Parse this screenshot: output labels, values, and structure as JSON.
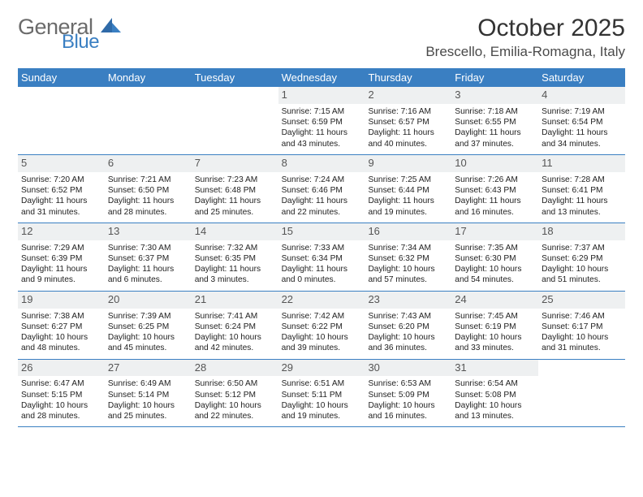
{
  "logo": {
    "top": "General",
    "bottom": "Blue"
  },
  "title": "October 2025",
  "location": "Brescello, Emilia-Romagna, Italy",
  "colors": {
    "header_bg": "#3a7fc2",
    "header_text": "#ffffff",
    "daynum_bg": "#eef0f1",
    "row_border": "#3a7fc2",
    "text": "#222222",
    "title_text": "#333333"
  },
  "weekdays": [
    "Sunday",
    "Monday",
    "Tuesday",
    "Wednesday",
    "Thursday",
    "Friday",
    "Saturday"
  ],
  "weeks": [
    [
      {
        "day": "",
        "empty": true
      },
      {
        "day": "",
        "empty": true
      },
      {
        "day": "",
        "empty": true
      },
      {
        "day": "1",
        "sunrise": "Sunrise: 7:15 AM",
        "sunset": "Sunset: 6:59 PM",
        "daylight1": "Daylight: 11 hours",
        "daylight2": "and 43 minutes."
      },
      {
        "day": "2",
        "sunrise": "Sunrise: 7:16 AM",
        "sunset": "Sunset: 6:57 PM",
        "daylight1": "Daylight: 11 hours",
        "daylight2": "and 40 minutes."
      },
      {
        "day": "3",
        "sunrise": "Sunrise: 7:18 AM",
        "sunset": "Sunset: 6:55 PM",
        "daylight1": "Daylight: 11 hours",
        "daylight2": "and 37 minutes."
      },
      {
        "day": "4",
        "sunrise": "Sunrise: 7:19 AM",
        "sunset": "Sunset: 6:54 PM",
        "daylight1": "Daylight: 11 hours",
        "daylight2": "and 34 minutes."
      }
    ],
    [
      {
        "day": "5",
        "sunrise": "Sunrise: 7:20 AM",
        "sunset": "Sunset: 6:52 PM",
        "daylight1": "Daylight: 11 hours",
        "daylight2": "and 31 minutes."
      },
      {
        "day": "6",
        "sunrise": "Sunrise: 7:21 AM",
        "sunset": "Sunset: 6:50 PM",
        "daylight1": "Daylight: 11 hours",
        "daylight2": "and 28 minutes."
      },
      {
        "day": "7",
        "sunrise": "Sunrise: 7:23 AM",
        "sunset": "Sunset: 6:48 PM",
        "daylight1": "Daylight: 11 hours",
        "daylight2": "and 25 minutes."
      },
      {
        "day": "8",
        "sunrise": "Sunrise: 7:24 AM",
        "sunset": "Sunset: 6:46 PM",
        "daylight1": "Daylight: 11 hours",
        "daylight2": "and 22 minutes."
      },
      {
        "day": "9",
        "sunrise": "Sunrise: 7:25 AM",
        "sunset": "Sunset: 6:44 PM",
        "daylight1": "Daylight: 11 hours",
        "daylight2": "and 19 minutes."
      },
      {
        "day": "10",
        "sunrise": "Sunrise: 7:26 AM",
        "sunset": "Sunset: 6:43 PM",
        "daylight1": "Daylight: 11 hours",
        "daylight2": "and 16 minutes."
      },
      {
        "day": "11",
        "sunrise": "Sunrise: 7:28 AM",
        "sunset": "Sunset: 6:41 PM",
        "daylight1": "Daylight: 11 hours",
        "daylight2": "and 13 minutes."
      }
    ],
    [
      {
        "day": "12",
        "sunrise": "Sunrise: 7:29 AM",
        "sunset": "Sunset: 6:39 PM",
        "daylight1": "Daylight: 11 hours",
        "daylight2": "and 9 minutes."
      },
      {
        "day": "13",
        "sunrise": "Sunrise: 7:30 AM",
        "sunset": "Sunset: 6:37 PM",
        "daylight1": "Daylight: 11 hours",
        "daylight2": "and 6 minutes."
      },
      {
        "day": "14",
        "sunrise": "Sunrise: 7:32 AM",
        "sunset": "Sunset: 6:35 PM",
        "daylight1": "Daylight: 11 hours",
        "daylight2": "and 3 minutes."
      },
      {
        "day": "15",
        "sunrise": "Sunrise: 7:33 AM",
        "sunset": "Sunset: 6:34 PM",
        "daylight1": "Daylight: 11 hours",
        "daylight2": "and 0 minutes."
      },
      {
        "day": "16",
        "sunrise": "Sunrise: 7:34 AM",
        "sunset": "Sunset: 6:32 PM",
        "daylight1": "Daylight: 10 hours",
        "daylight2": "and 57 minutes."
      },
      {
        "day": "17",
        "sunrise": "Sunrise: 7:35 AM",
        "sunset": "Sunset: 6:30 PM",
        "daylight1": "Daylight: 10 hours",
        "daylight2": "and 54 minutes."
      },
      {
        "day": "18",
        "sunrise": "Sunrise: 7:37 AM",
        "sunset": "Sunset: 6:29 PM",
        "daylight1": "Daylight: 10 hours",
        "daylight2": "and 51 minutes."
      }
    ],
    [
      {
        "day": "19",
        "sunrise": "Sunrise: 7:38 AM",
        "sunset": "Sunset: 6:27 PM",
        "daylight1": "Daylight: 10 hours",
        "daylight2": "and 48 minutes."
      },
      {
        "day": "20",
        "sunrise": "Sunrise: 7:39 AM",
        "sunset": "Sunset: 6:25 PM",
        "daylight1": "Daylight: 10 hours",
        "daylight2": "and 45 minutes."
      },
      {
        "day": "21",
        "sunrise": "Sunrise: 7:41 AM",
        "sunset": "Sunset: 6:24 PM",
        "daylight1": "Daylight: 10 hours",
        "daylight2": "and 42 minutes."
      },
      {
        "day": "22",
        "sunrise": "Sunrise: 7:42 AM",
        "sunset": "Sunset: 6:22 PM",
        "daylight1": "Daylight: 10 hours",
        "daylight2": "and 39 minutes."
      },
      {
        "day": "23",
        "sunrise": "Sunrise: 7:43 AM",
        "sunset": "Sunset: 6:20 PM",
        "daylight1": "Daylight: 10 hours",
        "daylight2": "and 36 minutes."
      },
      {
        "day": "24",
        "sunrise": "Sunrise: 7:45 AM",
        "sunset": "Sunset: 6:19 PM",
        "daylight1": "Daylight: 10 hours",
        "daylight2": "and 33 minutes."
      },
      {
        "day": "25",
        "sunrise": "Sunrise: 7:46 AM",
        "sunset": "Sunset: 6:17 PM",
        "daylight1": "Daylight: 10 hours",
        "daylight2": "and 31 minutes."
      }
    ],
    [
      {
        "day": "26",
        "sunrise": "Sunrise: 6:47 AM",
        "sunset": "Sunset: 5:15 PM",
        "daylight1": "Daylight: 10 hours",
        "daylight2": "and 28 minutes."
      },
      {
        "day": "27",
        "sunrise": "Sunrise: 6:49 AM",
        "sunset": "Sunset: 5:14 PM",
        "daylight1": "Daylight: 10 hours",
        "daylight2": "and 25 minutes."
      },
      {
        "day": "28",
        "sunrise": "Sunrise: 6:50 AM",
        "sunset": "Sunset: 5:12 PM",
        "daylight1": "Daylight: 10 hours",
        "daylight2": "and 22 minutes."
      },
      {
        "day": "29",
        "sunrise": "Sunrise: 6:51 AM",
        "sunset": "Sunset: 5:11 PM",
        "daylight1": "Daylight: 10 hours",
        "daylight2": "and 19 minutes."
      },
      {
        "day": "30",
        "sunrise": "Sunrise: 6:53 AM",
        "sunset": "Sunset: 5:09 PM",
        "daylight1": "Daylight: 10 hours",
        "daylight2": "and 16 minutes."
      },
      {
        "day": "31",
        "sunrise": "Sunrise: 6:54 AM",
        "sunset": "Sunset: 5:08 PM",
        "daylight1": "Daylight: 10 hours",
        "daylight2": "and 13 minutes."
      },
      {
        "day": "",
        "empty": true
      }
    ]
  ]
}
